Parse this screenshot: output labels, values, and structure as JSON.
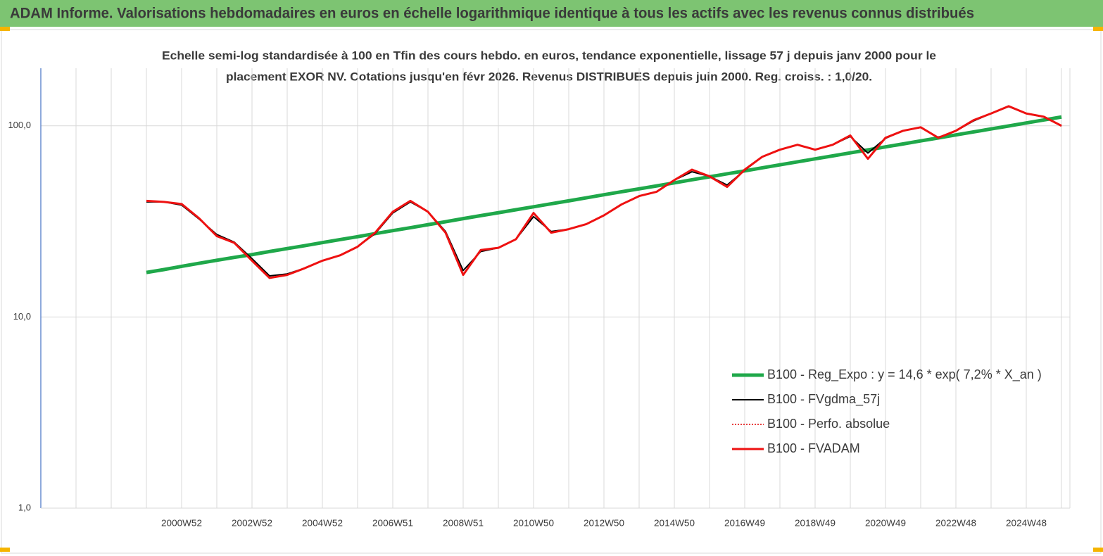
{
  "chart_data": {
    "type": "line",
    "header": "ADAM Informe. Valorisations hebdomadaires en euros en échelle logarithmique identique à tous les actifs avec les revenus connus distribués",
    "title": [
      "Echelle semi-log standardisée à 100 en Tfin des cours hebdo. en euros, tendance exponentielle, lissage 57 j depuis janv 2000 pour le",
      "placement EXOR NV. Cotations jusqu'en févr 2026. Revenus DISTRIBUES depuis juin 2000.  Reg. croiss. : 1,0/20."
    ],
    "log_scale": true,
    "ylim": [
      1,
      200
    ],
    "yticks": [
      {
        "value": 1,
        "label": "1,0"
      },
      {
        "value": 10,
        "label": "10,0"
      },
      {
        "value": 100,
        "label": "100,0"
      }
    ],
    "grid": true,
    "legend": "lower right",
    "categories": [
      null,
      null,
      "2000W52",
      null,
      null,
      null,
      "2002W52",
      null,
      null,
      null,
      "2004W52",
      null,
      null,
      null,
      "2006W51",
      null,
      null,
      null,
      "2008W51",
      null,
      null,
      null,
      "2010W50",
      null,
      null,
      null,
      "2012W50",
      null,
      null,
      null,
      "2014W50",
      null,
      null,
      null,
      "2016W49",
      null,
      null,
      null,
      "2018W49",
      null,
      null,
      null,
      "2020W49",
      null,
      null,
      null,
      "2022W48",
      null,
      null,
      null,
      "2024W48",
      null,
      null
    ],
    "series": [
      {
        "name": "B100 - Reg_Expo : y = 14,6 * exp( 7,2% *  X_an )",
        "color": "#1fa84a",
        "width": 5,
        "values": [
          17.1,
          17.7,
          18.4,
          19.1,
          19.8,
          20.5,
          21.2,
          22.0,
          22.8,
          23.6,
          24.5,
          25.4,
          26.3,
          27.3,
          28.3,
          29.3,
          30.4,
          31.5,
          32.7,
          33.9,
          35.1,
          36.4,
          37.7,
          39.1,
          40.5,
          42.0,
          43.6,
          45.2,
          46.8,
          48.5,
          50.3,
          52.2,
          54.1,
          56.1,
          58.1,
          60.3,
          62.5,
          64.8,
          67.2,
          69.6,
          72.2,
          74.8,
          77.6,
          80.4,
          83.4,
          86.4,
          89.6,
          92.9,
          96.3,
          99.8,
          103.5,
          107.3,
          111.2
        ]
      },
      {
        "name": "B100 - FVgdma_57j",
        "color": "#000000",
        "width": 2,
        "values": [
          40,
          40,
          38.5,
          32.5,
          27,
          24.6,
          20.2,
          16.4,
          16.8,
          18,
          19.7,
          21,
          23.3,
          27.3,
          35,
          40,
          35.5,
          28,
          17.5,
          22,
          23,
          25.5,
          33.5,
          28,
          28.8,
          30.6,
          34,
          38.8,
          42.9,
          45.2,
          52,
          57.5,
          54.4,
          49,
          58.5,
          68.9,
          75,
          79.6,
          75,
          79.6,
          88,
          72,
          86,
          94.2,
          98,
          87,
          94,
          106,
          116,
          126,
          116,
          111,
          100
        ]
      },
      {
        "name": "B100 - Perfo. absolue",
        "color": "#e00000",
        "width": 1.5,
        "dash": true,
        "values": [
          40.5,
          40,
          39,
          32.8,
          26.5,
          24.4,
          19.7,
          16,
          16.6,
          18,
          19.7,
          21,
          23.3,
          27.6,
          35.5,
          40.5,
          35.5,
          27.6,
          16.6,
          22.4,
          23,
          25.5,
          35,
          27.6,
          28.8,
          30.6,
          34,
          38.8,
          42.9,
          45.2,
          52,
          59,
          54.4,
          47.9,
          59,
          68.9,
          75,
          79.6,
          75,
          79.6,
          89,
          67.2,
          86.6,
          94.2,
          98.3,
          86.6,
          94.2,
          107,
          116,
          126.7,
          116,
          111.6,
          100
        ]
      },
      {
        "name": "B100 - FVADAM",
        "color": "#ee1111",
        "width": 3,
        "values": [
          40.5,
          40,
          39,
          32.8,
          26.5,
          24.4,
          19.7,
          16,
          16.6,
          18,
          19.7,
          21,
          23.3,
          27.6,
          35.5,
          40.5,
          35.5,
          27.6,
          16.6,
          22.4,
          23,
          25.5,
          35,
          27.6,
          28.8,
          30.6,
          34,
          38.8,
          42.9,
          45.2,
          52,
          59,
          54.4,
          47.9,
          59,
          68.9,
          75,
          79.6,
          75,
          79.6,
          89,
          67.2,
          86.6,
          94.2,
          98.3,
          86.6,
          94.2,
          107,
          116,
          126.7,
          116,
          111.6,
          100
        ]
      }
    ]
  }
}
